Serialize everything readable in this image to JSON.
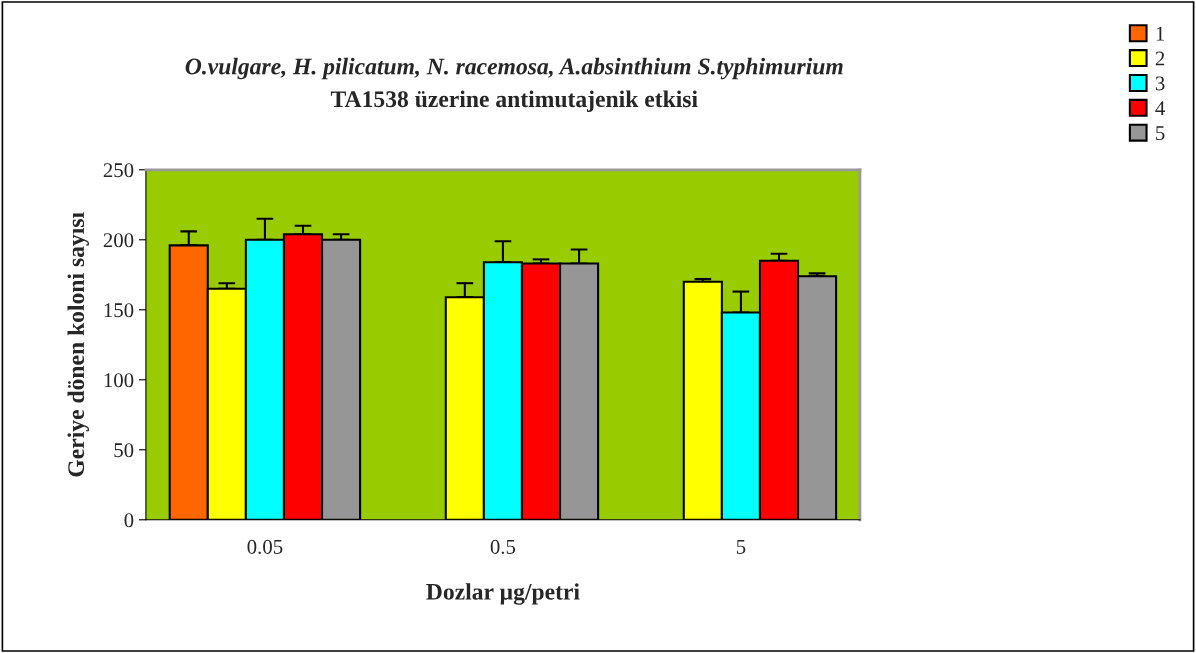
{
  "chart_data": {
    "type": "bar",
    "title": "O.vulgare, H. pilicatum, N. racemosa, A.absinthium S.typhimurium",
    "subtitle": "TA1538 üzerine antimutajenik etkisi",
    "xlabel": "Dozlar µg/petri",
    "ylabel": "Geriye dönen koloni sayısı",
    "categories": [
      "0.05",
      "0.5",
      "5"
    ],
    "series": [
      {
        "name": "1",
        "color": "#ff6600",
        "values": [
          196,
          null,
          null
        ],
        "errors": [
          [
            196,
            206
          ],
          null,
          null
        ]
      },
      {
        "name": "2",
        "color": "#ffff00",
        "values": [
          165,
          159,
          170
        ],
        "errors": [
          [
            165,
            169
          ],
          [
            159,
            169
          ],
          [
            170,
            172
          ]
        ]
      },
      {
        "name": "3",
        "color": "#00ffff",
        "values": [
          200,
          184,
          148
        ],
        "errors": [
          [
            200,
            215
          ],
          [
            184,
            199
          ],
          [
            148,
            163
          ]
        ]
      },
      {
        "name": "4",
        "color": "#ff0000",
        "values": [
          204,
          183,
          185
        ],
        "errors": [
          [
            204,
            210
          ],
          [
            183,
            186
          ],
          [
            185,
            190
          ]
        ]
      },
      {
        "name": "5",
        "color": "#969696",
        "values": [
          200,
          183,
          174
        ],
        "errors": [
          [
            200,
            204
          ],
          [
            183,
            193
          ],
          [
            174,
            176
          ]
        ]
      }
    ],
    "ylim": [
      0,
      250
    ],
    "yticks": [
      0,
      50,
      100,
      150,
      200,
      250
    ],
    "grid": false,
    "legend": "top right"
  }
}
